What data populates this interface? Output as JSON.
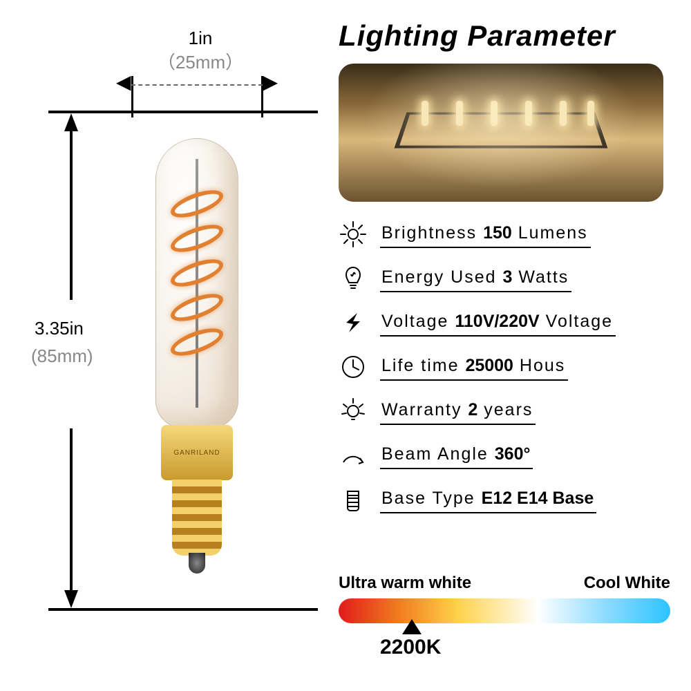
{
  "diagram": {
    "width_in": "1in",
    "width_mm": "（25mm）",
    "height_in": "3.35in",
    "height_mm": "(85mm)",
    "brand": "GANRILAND"
  },
  "title": "Lighting Parameter",
  "photo": {
    "background_gradient": [
      "#3a2c18",
      "#8a6a3a",
      "#d9b77a",
      "#6b5230"
    ]
  },
  "specs": [
    {
      "icon": "sun",
      "label": "Brightness",
      "value": "150",
      "unit": "Lumens"
    },
    {
      "icon": "bulb",
      "label": "Energy Used",
      "value": "3",
      "unit": "Watts"
    },
    {
      "icon": "bolt",
      "label": "Voltage",
      "value": "110V/220V",
      "unit": "Voltage"
    },
    {
      "icon": "clock",
      "label": "Life time",
      "value": "25000",
      "unit": "Hous"
    },
    {
      "icon": "bulb-rays",
      "label": "Warranty",
      "value": "2",
      "unit": "years"
    },
    {
      "icon": "arc",
      "label": "Beam Angle",
      "value": "360°",
      "unit": ""
    },
    {
      "icon": "base",
      "label": "Base Type",
      "value": "E12 E14 Base",
      "unit": ""
    }
  ],
  "color_temp": {
    "left_label": "Ultra warm white",
    "right_label": "Cool White",
    "gradient": [
      "#e11b1b",
      "#f07c1e",
      "#ffd24a",
      "#ffffff",
      "#8fdcff",
      "#2bc4ff"
    ],
    "marker_value": "2200K",
    "marker_position_pct": 19
  },
  "colors": {
    "text": "#000000",
    "muted": "#888888",
    "gold_light": "#f5d77a",
    "gold_dark": "#c99a2e",
    "filament": "#e08030"
  },
  "typography": {
    "title_fontsize": 42,
    "spec_fontsize": 25,
    "dim_fontsize": 26
  }
}
